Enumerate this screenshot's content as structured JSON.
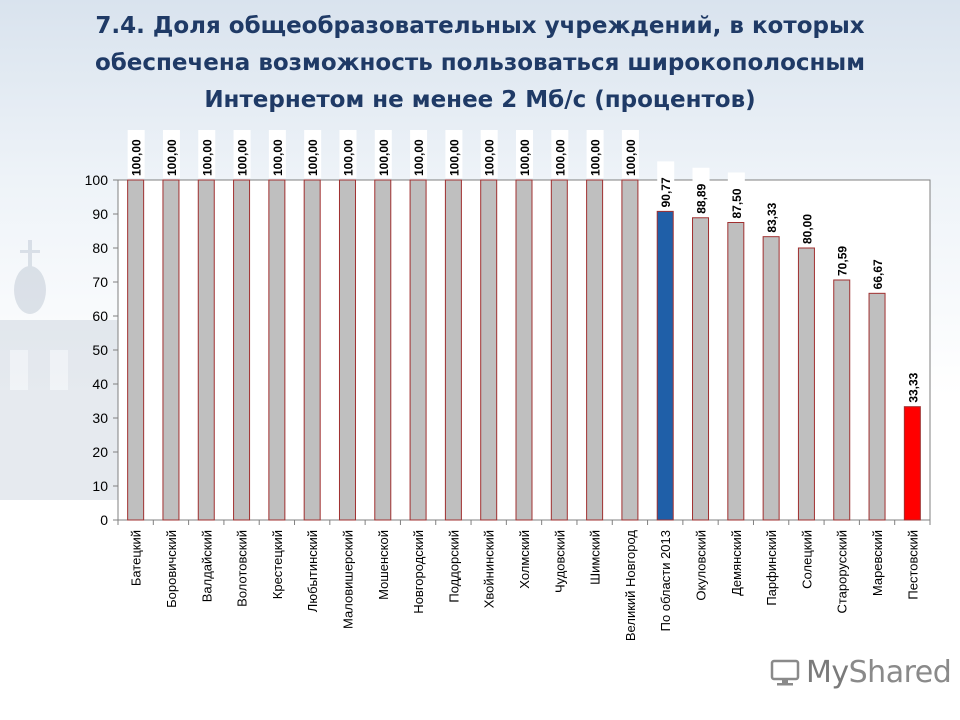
{
  "page": {
    "title": "7.4. Доля общеобразовательных учреждений, в которых обеспечена возможность пользоваться широкополосным Интернетом не менее 2 Мб/с (процентов)",
    "logo_text_1": "My",
    "logo_text_2": "Shared"
  },
  "chart_data": {
    "type": "bar",
    "title": "7.4. Доля общеобразовательных учреждений, в которых обеспечена возможность пользоваться широкополосным Интернетом не менее 2 Мб/с (процентов)",
    "xlabel": "",
    "ylabel": "",
    "ylim": [
      0,
      100
    ],
    "yticks": [
      0,
      10,
      20,
      30,
      40,
      50,
      60,
      70,
      80,
      90,
      100
    ],
    "grid": false,
    "legend": "none",
    "categories": [
      "Батецкий",
      "Боровичский",
      "Валдайский",
      "Волотовский",
      "Крестецкий",
      "Любытинский",
      "Маловишерский",
      "Мошенской",
      "Новгородский",
      "Поддорский",
      "Хвойнинский",
      "Холмский",
      "Чудовский",
      "Шимский",
      "Великий Новгород",
      "По области 2013",
      "Окуловский",
      "Демянский",
      "Парфинский",
      "Солецкий",
      "Старорусский",
      "Маревский",
      "Пестовский"
    ],
    "values": [
      100,
      100,
      100,
      100,
      100,
      100,
      100,
      100,
      100,
      100,
      100,
      100,
      100,
      100,
      100,
      90.77,
      88.89,
      87.5,
      83.33,
      80,
      70.59,
      66.67,
      33.33
    ],
    "value_labels": [
      "100,00",
      "100,00",
      "100,00",
      "100,00",
      "100,00",
      "100,00",
      "100,00",
      "100,00",
      "100,00",
      "100,00",
      "100,00",
      "100,00",
      "100,00",
      "100,00",
      "100,00",
      "90,77",
      "88,89",
      "87,50",
      "83,33",
      "80,00",
      "70,59",
      "66,67",
      "33,33"
    ],
    "colors": {
      "default": "#bfbfbf",
      "default_border": "#a03030",
      "region_total": "#1f5fa8",
      "lowest": "#ff0000"
    },
    "highlight": {
      "15": "region_total",
      "22": "lowest"
    }
  }
}
